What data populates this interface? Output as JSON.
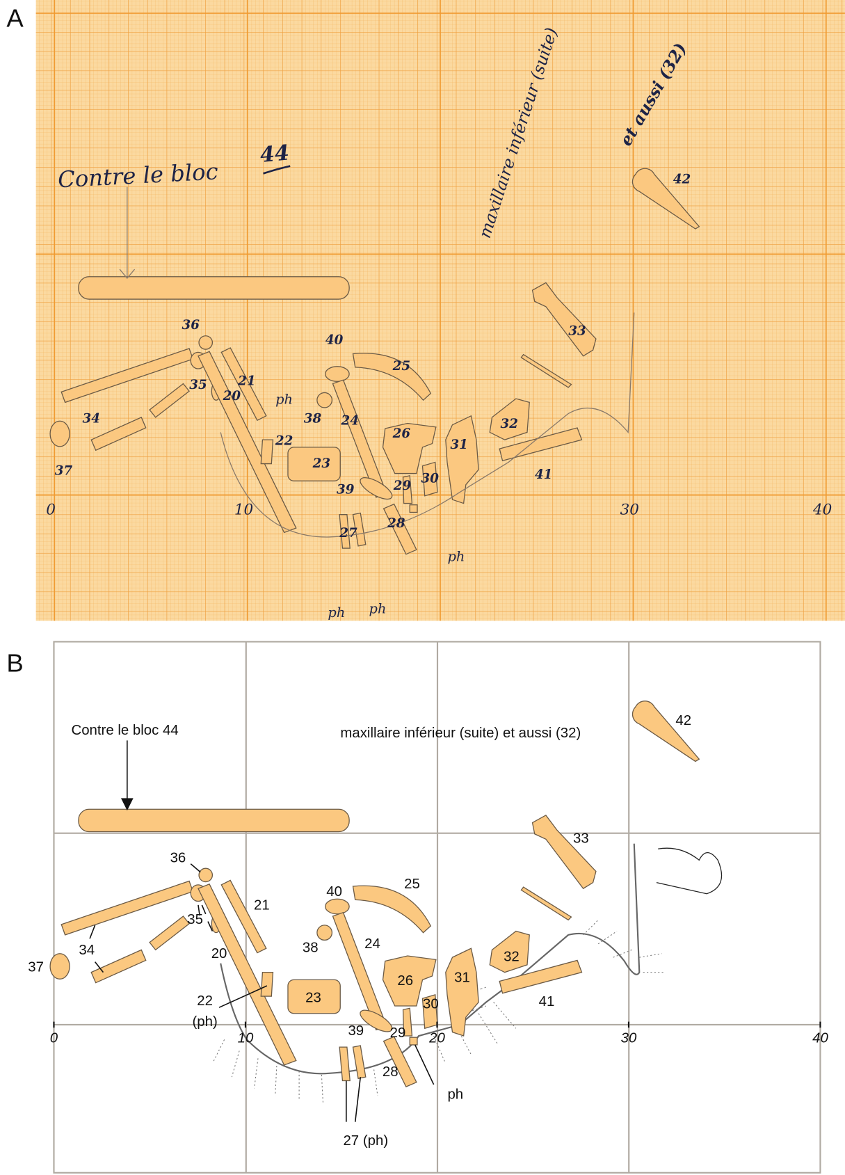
{
  "panel_a": {
    "label": "A",
    "notes": [
      {
        "text": "Contre le bloc"
      },
      {
        "text": "44"
      },
      {
        "text": "maxillaire inférieur (suite)"
      },
      {
        "text": "et aussi (32)"
      }
    ],
    "bone_numbers": [
      {
        "text": "36"
      },
      {
        "text": "34"
      },
      {
        "text": "35"
      },
      {
        "text": "20"
      },
      {
        "text": "21"
      },
      {
        "text": "37"
      },
      {
        "text": "22"
      },
      {
        "text": "23"
      },
      {
        "text": "40"
      },
      {
        "text": "38"
      },
      {
        "text": "24"
      },
      {
        "text": "25"
      },
      {
        "text": "26"
      },
      {
        "text": "31"
      },
      {
        "text": "32"
      },
      {
        "text": "33"
      },
      {
        "text": "42"
      },
      {
        "text": "41"
      },
      {
        "text": "39"
      },
      {
        "text": "29"
      },
      {
        "text": "30"
      },
      {
        "text": "27"
      },
      {
        "text": "28"
      },
      {
        "text": "ph"
      },
      {
        "text": "ph"
      },
      {
        "text": "ph"
      },
      {
        "text": "ph"
      }
    ],
    "axis_ticks": [
      0,
      10,
      30,
      40
    ]
  },
  "panel_b": {
    "label": "B",
    "notes": [
      {
        "text": "Contre le bloc 44"
      },
      {
        "text": "maxillaire inférieur (suite) et aussi (32)"
      }
    ],
    "bone_labels": [
      {
        "text": "36"
      },
      {
        "text": "21"
      },
      {
        "text": "35"
      },
      {
        "text": "20"
      },
      {
        "text": "34"
      },
      {
        "text": "37"
      },
      {
        "text": "22"
      },
      {
        "text": "(ph)"
      },
      {
        "text": "23"
      },
      {
        "text": "40"
      },
      {
        "text": "25"
      },
      {
        "text": "38"
      },
      {
        "text": "24"
      },
      {
        "text": "26"
      },
      {
        "text": "31"
      },
      {
        "text": "32"
      },
      {
        "text": "33"
      },
      {
        "text": "42"
      },
      {
        "text": "29"
      },
      {
        "text": "30"
      },
      {
        "text": "39"
      },
      {
        "text": "28"
      },
      {
        "text": "27 (ph)"
      },
      {
        "text": "ph"
      },
      {
        "text": "41"
      }
    ],
    "axis_ticks": [
      0,
      10,
      20,
      30,
      40
    ]
  }
}
